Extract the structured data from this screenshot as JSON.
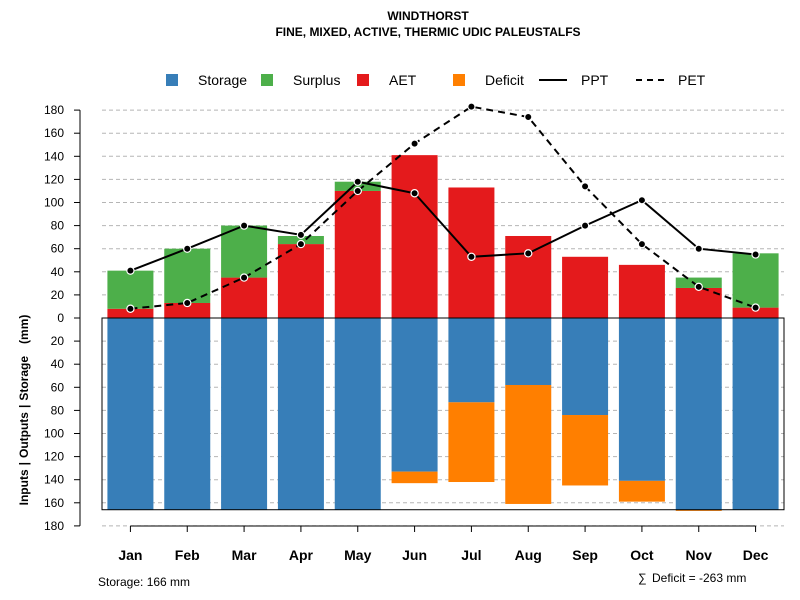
{
  "chart_data": {
    "type": "bar",
    "title": "WINDTHORST",
    "subtitle": "FINE, MIXED, ACTIVE, THERMIC UDIC PALEUSTALFS",
    "ylabel_parts": [
      "Inputs",
      "|",
      "Outputs",
      "|",
      "Storage",
      "(mm)"
    ],
    "categories": [
      "Jan",
      "Feb",
      "Mar",
      "Apr",
      "May",
      "Jun",
      "Jul",
      "Aug",
      "Sep",
      "Oct",
      "Nov",
      "Dec"
    ],
    "upper_ylim": [
      0,
      190
    ],
    "lower_ylim": [
      0,
      180
    ],
    "upper_ticks": [
      180,
      160,
      140,
      120,
      100,
      80,
      60,
      40,
      20
    ],
    "lower_ticks": [
      0,
      20,
      40,
      60,
      80,
      100,
      120,
      140,
      160,
      180
    ],
    "storage_capacity": 166,
    "series": [
      {
        "name": "Storage",
        "color": "#377EB8",
        "values": [
          166,
          166,
          166,
          166,
          166,
          133,
          73,
          58,
          84,
          141,
          166,
          166
        ]
      },
      {
        "name": "Surplus",
        "color": "#4DAF4A",
        "values": [
          33,
          47,
          45,
          7,
          8,
          0,
          0,
          0,
          0,
          0,
          9,
          47
        ]
      },
      {
        "name": "AET",
        "color": "#E41A1C",
        "values": [
          8,
          13,
          35,
          64,
          110,
          141,
          113,
          71,
          53,
          46,
          26,
          9
        ]
      },
      {
        "name": "Deficit",
        "color": "#FF7F00",
        "values": [
          0,
          0,
          0,
          0,
          0,
          10,
          69,
          103,
          61,
          18,
          1,
          0
        ]
      },
      {
        "name": "PPT",
        "color": "#000000",
        "values": [
          41,
          60,
          80,
          72,
          118,
          108,
          53,
          56,
          80,
          102,
          60,
          55
        ]
      },
      {
        "name": "PET",
        "color": "#000000",
        "values": [
          8,
          13,
          35,
          64,
          110,
          151,
          183,
          174,
          114,
          64,
          27,
          9
        ]
      }
    ],
    "legend": [
      {
        "label": "Storage",
        "kind": "box",
        "color": "#377EB8"
      },
      {
        "label": "Surplus",
        "kind": "box",
        "color": "#4DAF4A"
      },
      {
        "label": "AET",
        "kind": "box",
        "color": "#E41A1C"
      },
      {
        "label": "Deficit",
        "kind": "box",
        "color": "#FF7F00"
      },
      {
        "label": "PPT",
        "kind": "solid",
        "color": "#000000"
      },
      {
        "label": "PET",
        "kind": "dashed",
        "color": "#000000"
      }
    ],
    "legend_position": "top",
    "grid": true
  },
  "footer": {
    "storage": "Storage: 166 mm",
    "deficit_symbol": "∑",
    "deficit": "Deficit = -263 mm"
  }
}
